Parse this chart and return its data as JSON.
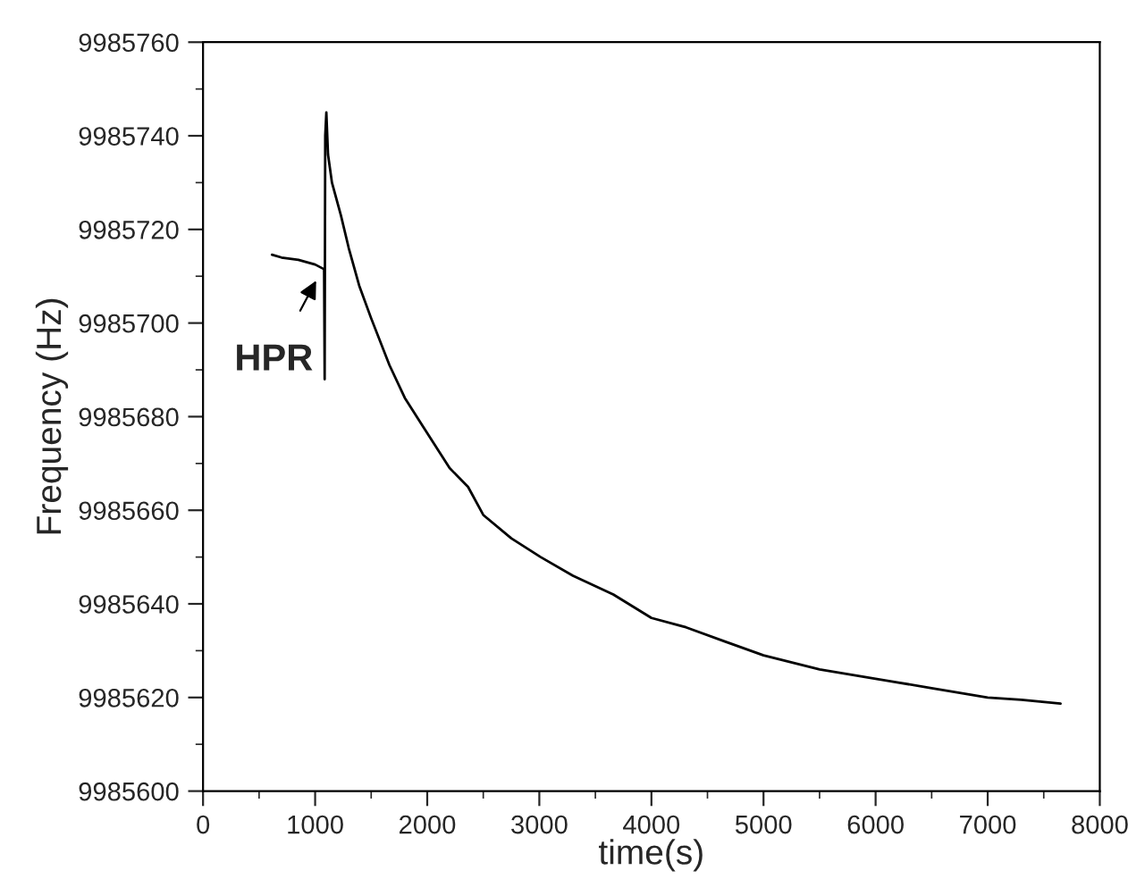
{
  "chart_data": {
    "type": "line",
    "xlabel": "time(s)",
    "ylabel": "Frequency (Hz)",
    "series": [
      {
        "color": "#000000",
        "x": [
          615,
          700,
          850,
          1000,
          1080,
          1085,
          1090,
          1100,
          1115,
          1150,
          1230,
          1300,
          1393,
          1500,
          1663,
          1800,
          1960,
          2200,
          2364,
          2500,
          2750,
          3012,
          3300,
          3660,
          4000,
          4308,
          4650,
          5000,
          5500,
          6000,
          6500,
          7000,
          7300,
          7650
        ],
        "values": [
          9985714.6,
          9985714,
          9985713.5,
          9985712.5,
          9985711.5,
          9985688,
          9985740,
          9985745,
          9985736,
          9985730,
          9985723,
          9985716,
          9985708,
          9985701,
          9985691,
          9985684,
          9985678,
          9985669,
          9985665,
          9985659,
          9985654,
          9985650,
          9985646,
          9985642,
          9985637,
          9985635,
          9985632,
          9985629,
          9985626,
          9985624,
          9985622,
          9985620,
          9985619.5,
          9985618.7
        ]
      }
    ],
    "annotations": [
      {
        "text": "HPR",
        "x": 1030,
        "y": 9985710
      }
    ],
    "xlim": [
      0,
      8000
    ],
    "xticks": [
      0,
      {
        "value": 500,
        "label": null
      },
      1000,
      {
        "value": 1500,
        "label": null
      },
      2000,
      {
        "value": 2500,
        "label": null
      },
      3000,
      {
        "value": 3500,
        "label": null
      },
      4000,
      {
        "value": 4500,
        "label": null
      },
      5000,
      {
        "value": 5500,
        "label": null
      },
      6000,
      {
        "value": 6500,
        "label": null
      },
      7000,
      {
        "value": 7500,
        "label": null
      },
      8000
    ],
    "ylim": [
      9985600,
      9985760
    ],
    "yticks": [
      9985600,
      {
        "value": 9985610,
        "label": null
      },
      9985620,
      {
        "value": 9985630,
        "label": null
      },
      9985640,
      {
        "value": 9985650,
        "label": null
      },
      9985660,
      {
        "value": 9985670,
        "label": null
      },
      9985680,
      {
        "value": 9985690,
        "label": null
      },
      9985700,
      {
        "value": 9985710,
        "label": null
      },
      9985720,
      {
        "value": 9985730,
        "label": null
      },
      9985740,
      {
        "value": 9985750,
        "label": null
      },
      9985760
    ],
    "grid": false,
    "legend": false,
    "marker": "none",
    "line_style": "solid"
  }
}
